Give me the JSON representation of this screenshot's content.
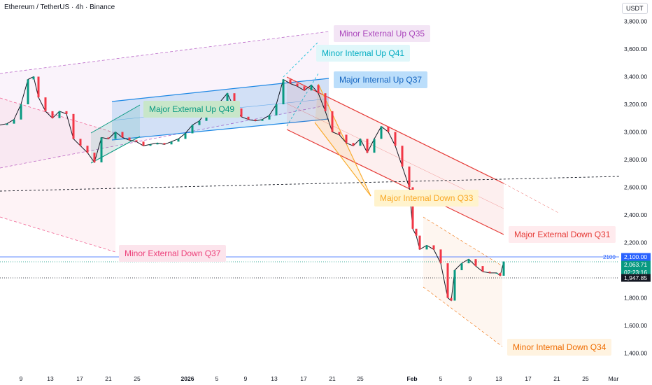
{
  "header": {
    "title": "Ethereum / TetherUS · 4h · Binance",
    "currency": "USDT"
  },
  "chart_data": {
    "type": "candlestick",
    "title": "Ethereum / TetherUS · 4h · Binance",
    "y_axis": {
      "unit": "USDT",
      "range": [
        1300,
        3900
      ],
      "ticks": [
        "3,800.00",
        "3,600.00",
        "3,400.00",
        "3,200.00",
        "3,000.00",
        "2,800.00",
        "2,600.00",
        "2,400.00",
        "2,200.00",
        "1,800.00",
        "1,600.00",
        "1,400.00"
      ]
    },
    "x_axis": {
      "ticks": [
        "9",
        "13",
        "17",
        "21",
        "25",
        "2026",
        "5",
        "9",
        "13",
        "17",
        "21",
        "25",
        "Feb",
        "5",
        "9",
        "13",
        "17",
        "21",
        "25",
        "Mar"
      ]
    },
    "price_markers": [
      {
        "label": "2100",
        "value": "2,100.00",
        "color": "#2962ff"
      },
      {
        "label": "",
        "value": "2,063.71",
        "color": "#089981"
      },
      {
        "label": "",
        "value": "02:23:16",
        "color": "#089981"
      },
      {
        "label": "",
        "value": "1,947.85",
        "color": "#131722"
      }
    ],
    "channels": [
      {
        "name": "Minor External Up  Q35",
        "color": "#ba68c8"
      },
      {
        "name": "Minor Internal Up  Q41",
        "color": "#00bcd4"
      },
      {
        "name": "Major Internal Up  Q37",
        "color": "#1e88e5"
      },
      {
        "name": "Major External Up  Q49",
        "color": "#089981"
      },
      {
        "name": "Minor External Down  Q37",
        "color": "#f06292"
      },
      {
        "name": "Major Internal Down  Q33",
        "color": "#f9a825"
      },
      {
        "name": "Major External Down  Q31",
        "color": "#e53935"
      },
      {
        "name": "Minor Internal Down  Q34",
        "color": "#ef6c00"
      }
    ],
    "price_path": [
      [
        0,
        3050
      ],
      [
        10,
        3060
      ],
      [
        20,
        3090
      ],
      [
        30,
        3200
      ],
      [
        40,
        3380
      ],
      [
        48,
        3400
      ],
      [
        55,
        3250
      ],
      [
        65,
        3150
      ],
      [
        75,
        3100
      ],
      [
        85,
        3150
      ],
      [
        95,
        3130
      ],
      [
        105,
        2950
      ],
      [
        115,
        2900
      ],
      [
        125,
        2850
      ],
      [
        135,
        2780
      ],
      [
        145,
        2960
      ],
      [
        155,
        2950
      ],
      [
        165,
        3000
      ],
      [
        175,
        2960
      ],
      [
        185,
        2940
      ],
      [
        195,
        2930
      ],
      [
        205,
        2900
      ],
      [
        215,
        2910
      ],
      [
        225,
        2920
      ],
      [
        235,
        2910
      ],
      [
        245,
        2930
      ],
      [
        255,
        2950
      ],
      [
        265,
        2990
      ],
      [
        275,
        3050
      ],
      [
        285,
        3080
      ],
      [
        295,
        3150
      ],
      [
        305,
        3180
      ],
      [
        315,
        3220
      ],
      [
        325,
        3280
      ],
      [
        335,
        3170
      ],
      [
        345,
        3110
      ],
      [
        355,
        3090
      ],
      [
        365,
        3080
      ],
      [
        375,
        3090
      ],
      [
        385,
        3120
      ],
      [
        395,
        3200
      ],
      [
        405,
        3380
      ],
      [
        415,
        3350
      ],
      [
        425,
        3330
      ],
      [
        435,
        3300
      ],
      [
        445,
        3340
      ],
      [
        455,
        3280
      ],
      [
        465,
        3150
      ],
      [
        475,
        3000
      ],
      [
        485,
        2980
      ],
      [
        495,
        2920
      ],
      [
        505,
        2900
      ],
      [
        515,
        2950
      ],
      [
        525,
        2850
      ],
      [
        535,
        2950
      ],
      [
        545,
        3040
      ],
      [
        555,
        3000
      ],
      [
        565,
        2900
      ],
      [
        575,
        2750
      ],
      [
        585,
        2600
      ],
      [
        590,
        2300
      ],
      [
        595,
        2250
      ],
      [
        600,
        2150
      ],
      [
        610,
        2180
      ],
      [
        620,
        2150
      ],
      [
        630,
        2050
      ],
      [
        640,
        1800
      ],
      [
        645,
        1780
      ],
      [
        650,
        2000
      ],
      [
        660,
        2050
      ],
      [
        670,
        2080
      ],
      [
        680,
        2030
      ],
      [
        690,
        1990
      ],
      [
        700,
        1980
      ],
      [
        710,
        1980
      ],
      [
        715,
        1960
      ],
      [
        720,
        2063
      ]
    ]
  }
}
